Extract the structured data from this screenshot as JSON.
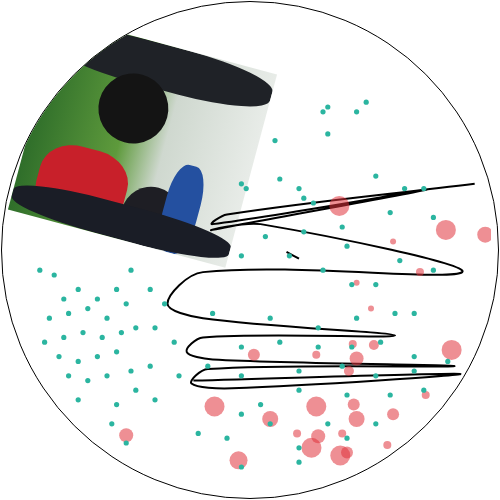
{
  "chart_data": {
    "type": "scatter",
    "xlim": [
      0,
      500
    ],
    "ylim": [
      0,
      500
    ],
    "grid": false,
    "tick_labels": false,
    "series": [
      {
        "type": "scatter",
        "color": "#2bb5a0",
        "marker": "circle",
        "x": [
          325,
          330,
          360,
          370,
          275,
          330,
          245,
          240,
          300,
          305,
          315,
          280,
          380,
          410,
          430,
          265,
          305,
          345,
          350,
          395,
          440,
          240,
          290,
          325,
          355,
          380,
          405,
          440,
          210,
          270,
          320,
          360,
          400,
          420,
          240,
          280,
          320,
          355,
          385,
          420,
          455,
          205,
          240,
          300,
          345,
          380,
          420,
          260,
          300,
          350,
          395,
          430,
          240,
          270,
          330,
          380,
          195,
          225,
          300,
          350,
          240,
          300,
          30,
          45,
          55,
          70,
          90,
          110,
          40,
          60,
          80,
          100,
          120,
          35,
          55,
          75,
          95,
          115,
          130,
          50,
          70,
          90,
          110,
          60,
          80,
          100,
          125,
          145,
          70,
          110,
          105,
          130,
          150,
          175,
          150,
          170,
          145,
          125,
          160,
          120
        ],
        "values": [
          105,
          100,
          105,
          95,
          135,
          128,
          185,
          180,
          185,
          195,
          200,
          175,
          172,
          185,
          185,
          235,
          230,
          225,
          245,
          210,
          215,
          255,
          255,
          270,
          285,
          285,
          260,
          270,
          315,
          320,
          330,
          320,
          315,
          315,
          350,
          345,
          350,
          350,
          345,
          360,
          365,
          370,
          380,
          375,
          370,
          380,
          375,
          410,
          395,
          400,
          400,
          395,
          420,
          430,
          430,
          430,
          440,
          445,
          455,
          445,
          475,
          470,
          270,
          275,
          300,
          290,
          300,
          290,
          320,
          315,
          310,
          320,
          305,
          345,
          340,
          335,
          340,
          335,
          330,
          360,
          365,
          360,
          355,
          380,
          385,
          380,
          375,
          370,
          405,
          410,
          430,
          395,
          405,
          380,
          330,
          345,
          290,
          270,
          305,
          450
        ]
      },
      {
        "type": "bubble",
        "color": "#e0333c",
        "marker": "circle",
        "x": [
          342,
          453,
          494,
          398,
          426,
          375,
          253,
          318,
          360,
          356,
          378,
          459,
          352,
          212,
          270,
          318,
          357,
          360,
          398,
          432,
          120,
          298,
          320,
          345,
          313,
          343,
          237,
          350,
          392,
          360
        ],
        "values": [
          203,
          228,
          233,
          240,
          272,
          310,
          358,
          358,
          362,
          347,
          348,
          353,
          375,
          412,
          425,
          412,
          410,
          425,
          420,
          400,
          442,
          440,
          443,
          440,
          455,
          463,
          468,
          460,
          452,
          283
        ],
        "sizes": [
          10,
          10,
          8,
          3,
          4,
          3,
          6,
          4,
          7,
          4,
          5,
          10,
          5,
          10,
          8,
          10,
          6,
          8,
          6,
          4,
          7,
          4,
          7,
          4,
          10,
          10,
          9,
          6,
          4,
          3
        ]
      },
      {
        "type": "line",
        "color": "#000000",
        "line_style": "solid",
        "x": [
          287,
          300,
          null,
          483,
          225,
          210,
          435,
          210,
          260,
          470,
          200,
          163,
          200,
          400,
          200,
          183,
          210,
          462,
          205,
          188,
          230,
          468,
          190
        ],
        "values": [
          251,
          258,
          null,
          180,
          212,
          222,
          186,
          228,
          222,
          272,
          272,
          305,
          320,
          338,
          340,
          355,
          363,
          370,
          373,
          388,
          393,
          378,
          385
        ]
      }
    ]
  }
}
